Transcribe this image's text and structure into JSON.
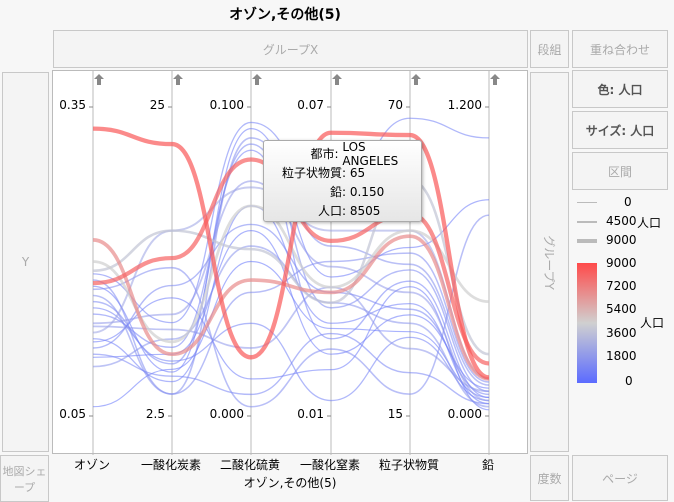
{
  "title": "オゾン,その他(5)",
  "zones": {
    "group_x": "グループX",
    "wrap": "段組",
    "overlay": "重ね合わせ",
    "y": "Y",
    "group_y": "グループY",
    "color": "色: 人口",
    "size": "サイズ: 人口",
    "interval": "区間",
    "map_shape": "地図シェープ",
    "freq": "度数",
    "page": "ページ"
  },
  "x_title": "オゾン,その他(5)",
  "tooltip": {
    "rows": [
      {
        "k": "都市",
        "v": "LOS ANGELES"
      },
      {
        "k": "粒子状物質",
        "v": "65"
      },
      {
        "k": "鉛",
        "v": "0.150"
      },
      {
        "k": "人口",
        "v": "8505"
      }
    ]
  },
  "legend": {
    "size_title": "人口",
    "size_values": [
      "0",
      "4500",
      "9000"
    ],
    "color_title": "人口",
    "color_ticks": [
      "9000",
      "7200",
      "5400",
      "3600",
      "1800",
      "0"
    ],
    "colors": {
      "low": "#5b6bff",
      "mid": "#cfcfcf",
      "high": "#ff4a4a"
    }
  },
  "chart_data": {
    "type": "parallel",
    "axes": [
      {
        "label": "オゾン",
        "min": 0.05,
        "max": 0.35,
        "min_label": "0.05",
        "max_label": "0.35"
      },
      {
        "label": "一酸化炭素",
        "min": 2.5,
        "max": 25,
        "min_label": "2.5",
        "max_label": "25"
      },
      {
        "label": "二酸化硫黄",
        "min": 0,
        "max": 0.1,
        "min_label": "0.000",
        "max_label": "0.100"
      },
      {
        "label": "一酸化窒素",
        "min": 0.01,
        "max": 0.07,
        "min_label": "0.01",
        "max_label": "0.07"
      },
      {
        "label": "粒子状物質",
        "min": 15,
        "max": 70,
        "min_label": "15",
        "max_label": "70"
      },
      {
        "label": "鉛",
        "min": 0,
        "max": 1.2,
        "min_label": "0.000",
        "max_label": "1.200"
      }
    ],
    "color_by": "人口",
    "size_by": "人口",
    "pop_range": [
      0,
      9000
    ],
    "lines": [
      {
        "v": [
          0.188,
          9.3,
          0.095,
          0.052,
          68,
          1.08
        ],
        "pop": 800
      },
      {
        "v": [
          0.176,
          5.7,
          0.093,
          0.037,
          45,
          0.84
        ],
        "pop": 600
      },
      {
        "v": [
          0.167,
          4.1,
          0.09,
          0.043,
          42,
          0.12
        ],
        "pop": 1500
      },
      {
        "v": [
          0.161,
          6.3,
          0.088,
          0.031,
          41,
          0.096
        ],
        "pop": 1200
      },
      {
        "v": [
          0.149,
          7.5,
          0.086,
          0.025,
          39,
          0.072
        ],
        "pop": 900
      },
      {
        "v": [
          0.14,
          9.9,
          0.076,
          0.039,
          37,
          0.06
        ],
        "pop": 2000
      },
      {
        "v": [
          0.131,
          16.0,
          0.074,
          0.046,
          48,
          0.144
        ],
        "pop": 2500
      },
      {
        "v": [
          0.125,
          5.0,
          0.068,
          0.028,
          35,
          0.048
        ],
        "pop": 700
      },
      {
        "v": [
          0.116,
          12.0,
          0.062,
          0.034,
          34,
          0.084
        ],
        "pop": 1100
      },
      {
        "v": [
          0.107,
          7.0,
          0.06,
          0.022,
          33,
          0.108
        ],
        "pop": 500
      },
      {
        "v": [
          0.098,
          8.1,
          0.055,
          0.032,
          31.5,
          0.036
        ],
        "pop": 1700
      },
      {
        "v": [
          0.059,
          5.9,
          0.05,
          0.027,
          30,
          0.072
        ],
        "pop": 400
      },
      {
        "v": [
          0.182,
          4.1,
          0.04,
          0.04,
          44,
          0.132
        ],
        "pop": 1300
      },
      {
        "v": [
          0.155,
          6.5,
          0.03,
          0.013,
          29,
          0.06
        ],
        "pop": 800
      },
      {
        "v": [
          0.137,
          8.8,
          0.022,
          0.035,
          27,
          0.096
        ],
        "pop": 1900
      },
      {
        "v": [
          0.122,
          11.1,
          0.012,
          0.019,
          38,
          0.024
        ],
        "pop": 600
      },
      {
        "v": [
          0.11,
          5.4,
          0.007,
          0.026,
          22.7,
          0.048
        ],
        "pop": 1000
      },
      {
        "v": [
          0.173,
          13.3,
          0.003,
          0.023,
          18.9,
          0.78
        ],
        "pop": 1400
      },
      {
        "v": [
          0.191,
          16.0,
          0.054,
          0.032,
          57,
          0.24
        ],
        "pop": 4000
      },
      {
        "v": [
          0.2,
          7.9,
          0.068,
          0.035,
          48,
          0.444
        ],
        "pop": 4500
      },
      {
        "v": [
          0.221,
          7.0,
          0.044,
          0.034,
          47,
          0.144
        ],
        "pop": 6800
      },
      {
        "v": [
          0.179,
          14.0,
          0.083,
          0.044,
          51,
          0.204
        ],
        "pop": 8200
      },
      {
        "v": [
          0.329,
          22.3,
          0.019,
          0.065,
          65,
          0.15
        ],
        "pop": 8505,
        "city": "LOS ANGELES"
      }
    ]
  }
}
